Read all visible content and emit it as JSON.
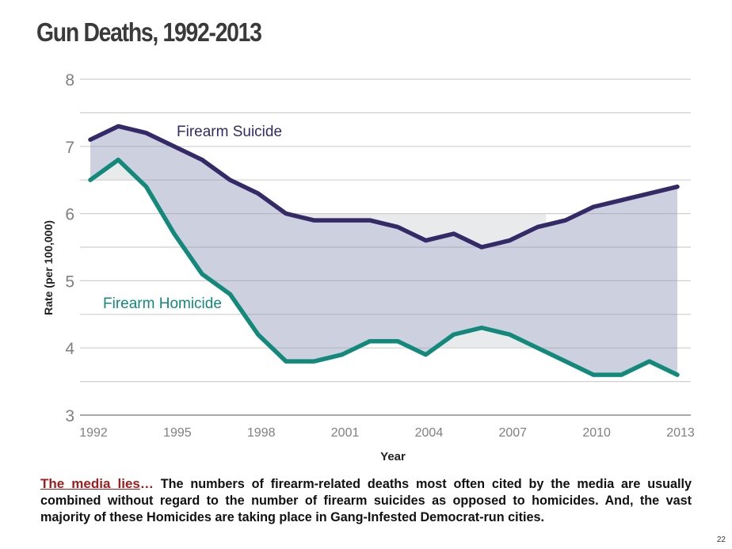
{
  "slide": {
    "page_number": "22",
    "caption": {
      "lead": "The media lies",
      "lead_ellipsis": "…",
      "body": " The numbers of firearm-related deaths most often cited by the media are usually combined without regard to the number of firearm suicides as opposed to homicides. And, the vast majority of these Homicides are taking place in Gang-Infested Democrat-run cities."
    }
  },
  "colors": {
    "suicide": "#352a68",
    "homicide": "#12897a",
    "fill_between": "#cdd0df",
    "fill_light": "#e9eaec",
    "grid": "#cfcfcf",
    "lead_text": "#a11c1c"
  },
  "chart_data": {
    "type": "line",
    "title": "Gun Deaths, 1992-2013",
    "xlabel": "Year",
    "ylabel": "Rate (per 100,000)",
    "x": [
      1992,
      1993,
      1994,
      1995,
      1996,
      1997,
      1998,
      1999,
      2000,
      2001,
      2002,
      2003,
      2004,
      2005,
      2006,
      2007,
      2008,
      2009,
      2010,
      2011,
      2012,
      2013
    ],
    "xlim": [
      1992,
      2013
    ],
    "ylim": [
      3,
      8
    ],
    "x_ticks": [
      "1992",
      "1995",
      "1998",
      "2001",
      "2004",
      "2007",
      "2010",
      "2013"
    ],
    "x_tick_values": [
      1992,
      1995,
      1998,
      2001,
      2004,
      2007,
      2010,
      2013
    ],
    "y_ticks": [
      "3",
      "4",
      "5",
      "6",
      "7",
      "8"
    ],
    "y_tick_values": [
      3,
      4,
      5,
      6,
      7,
      8
    ],
    "grid": true,
    "grid_step": 0.5,
    "legend": "inline labels",
    "series": [
      {
        "name": "Firearm Suicide",
        "values": [
          7.1,
          7.3,
          7.2,
          7.0,
          6.8,
          6.5,
          6.3,
          6.0,
          5.9,
          5.9,
          5.9,
          5.8,
          5.6,
          5.7,
          5.5,
          5.6,
          5.8,
          5.9,
          6.1,
          6.2,
          6.3,
          6.4
        ]
      },
      {
        "name": "Firearm Homicide",
        "values": [
          6.5,
          6.8,
          6.4,
          5.7,
          5.1,
          4.8,
          4.2,
          3.8,
          3.8,
          3.9,
          4.1,
          4.1,
          3.9,
          4.2,
          4.3,
          4.2,
          4.0,
          3.8,
          3.6,
          3.6,
          3.8,
          3.6
        ]
      }
    ],
    "annotations": [
      "Area between Firearm Suicide and Firearm Homicide lines is shaded"
    ]
  }
}
